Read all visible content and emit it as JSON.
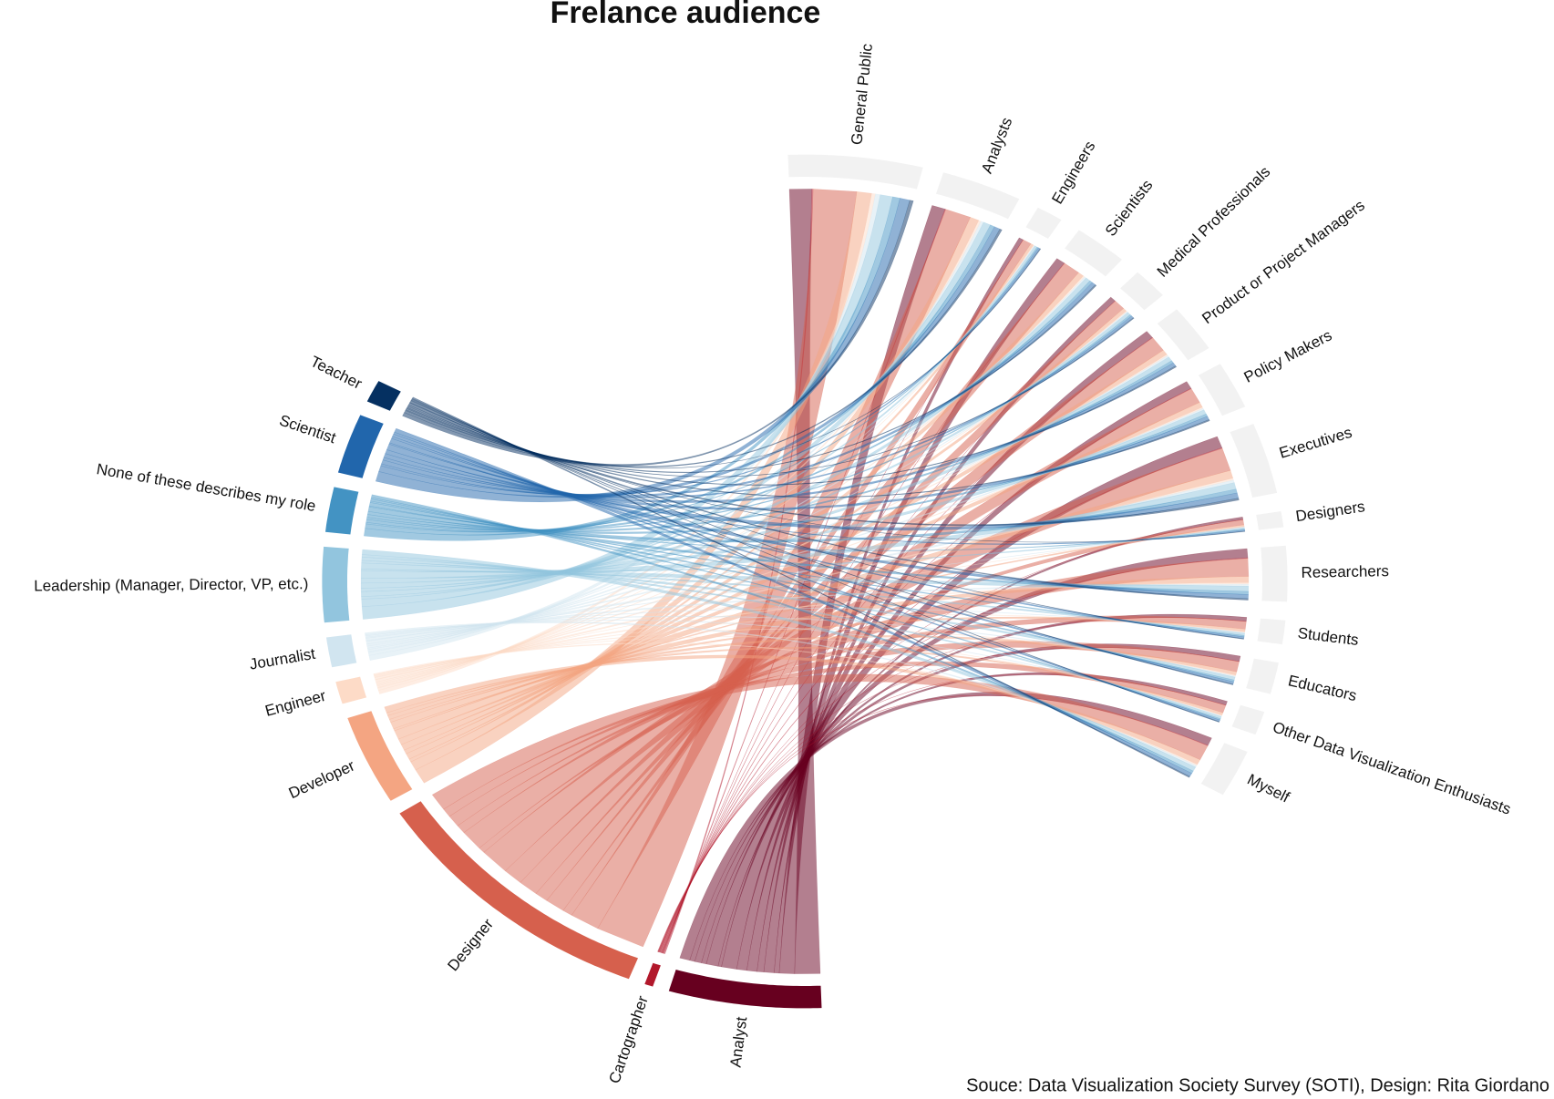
{
  "chart_data": {
    "type": "chord",
    "title": "Frelance audience",
    "source": "Souce: Data Visualization Society Survey (SOTI), Design: Rita Giordano",
    "roles": [
      {
        "name": "Analyst",
        "color": "#67001f",
        "value": 18
      },
      {
        "name": "Cartographer",
        "color": "#b2182b",
        "value": 1
      },
      {
        "name": "Designer",
        "color": "#d6604d",
        "value": 35
      },
      {
        "name": "Developer",
        "color": "#f4a582",
        "value": 12
      },
      {
        "name": "Engineer",
        "color": "#fddbc7",
        "value": 3
      },
      {
        "name": "Journalist",
        "color": "#d1e5f0",
        "value": 4
      },
      {
        "name": "Leadership (Manager, Director, VP, etc.)",
        "color": "#92c5de",
        "value": 10
      },
      {
        "name": "None of these describes my role",
        "color": "#4393c3",
        "value": 6
      },
      {
        "name": "Scientist",
        "color": "#2166ac",
        "value": 8
      },
      {
        "name": "Teacher",
        "color": "#053061",
        "value": 3
      }
    ],
    "audiences": [
      {
        "name": "General Public",
        "value": 15
      },
      {
        "name": "Analysts",
        "value": 9
      },
      {
        "name": "Engineers",
        "value": 3
      },
      {
        "name": "Scientists",
        "value": 6
      },
      {
        "name": "Medical Professionals",
        "value": 4
      },
      {
        "name": "Product or Project Managers",
        "value": 6
      },
      {
        "name": "Policy Makers",
        "value": 6
      },
      {
        "name": "Executives",
        "value": 9
      },
      {
        "name": "Designers",
        "value": 2
      },
      {
        "name": "Researchers",
        "value": 7
      },
      {
        "name": "Students",
        "value": 3
      },
      {
        "name": "Educators",
        "value": 4
      },
      {
        "name": "Other Data Visualization Enthusiasts",
        "value": 3
      },
      {
        "name": "Myself",
        "value": 6
      }
    ],
    "audience_color": "#f2f2f2"
  }
}
